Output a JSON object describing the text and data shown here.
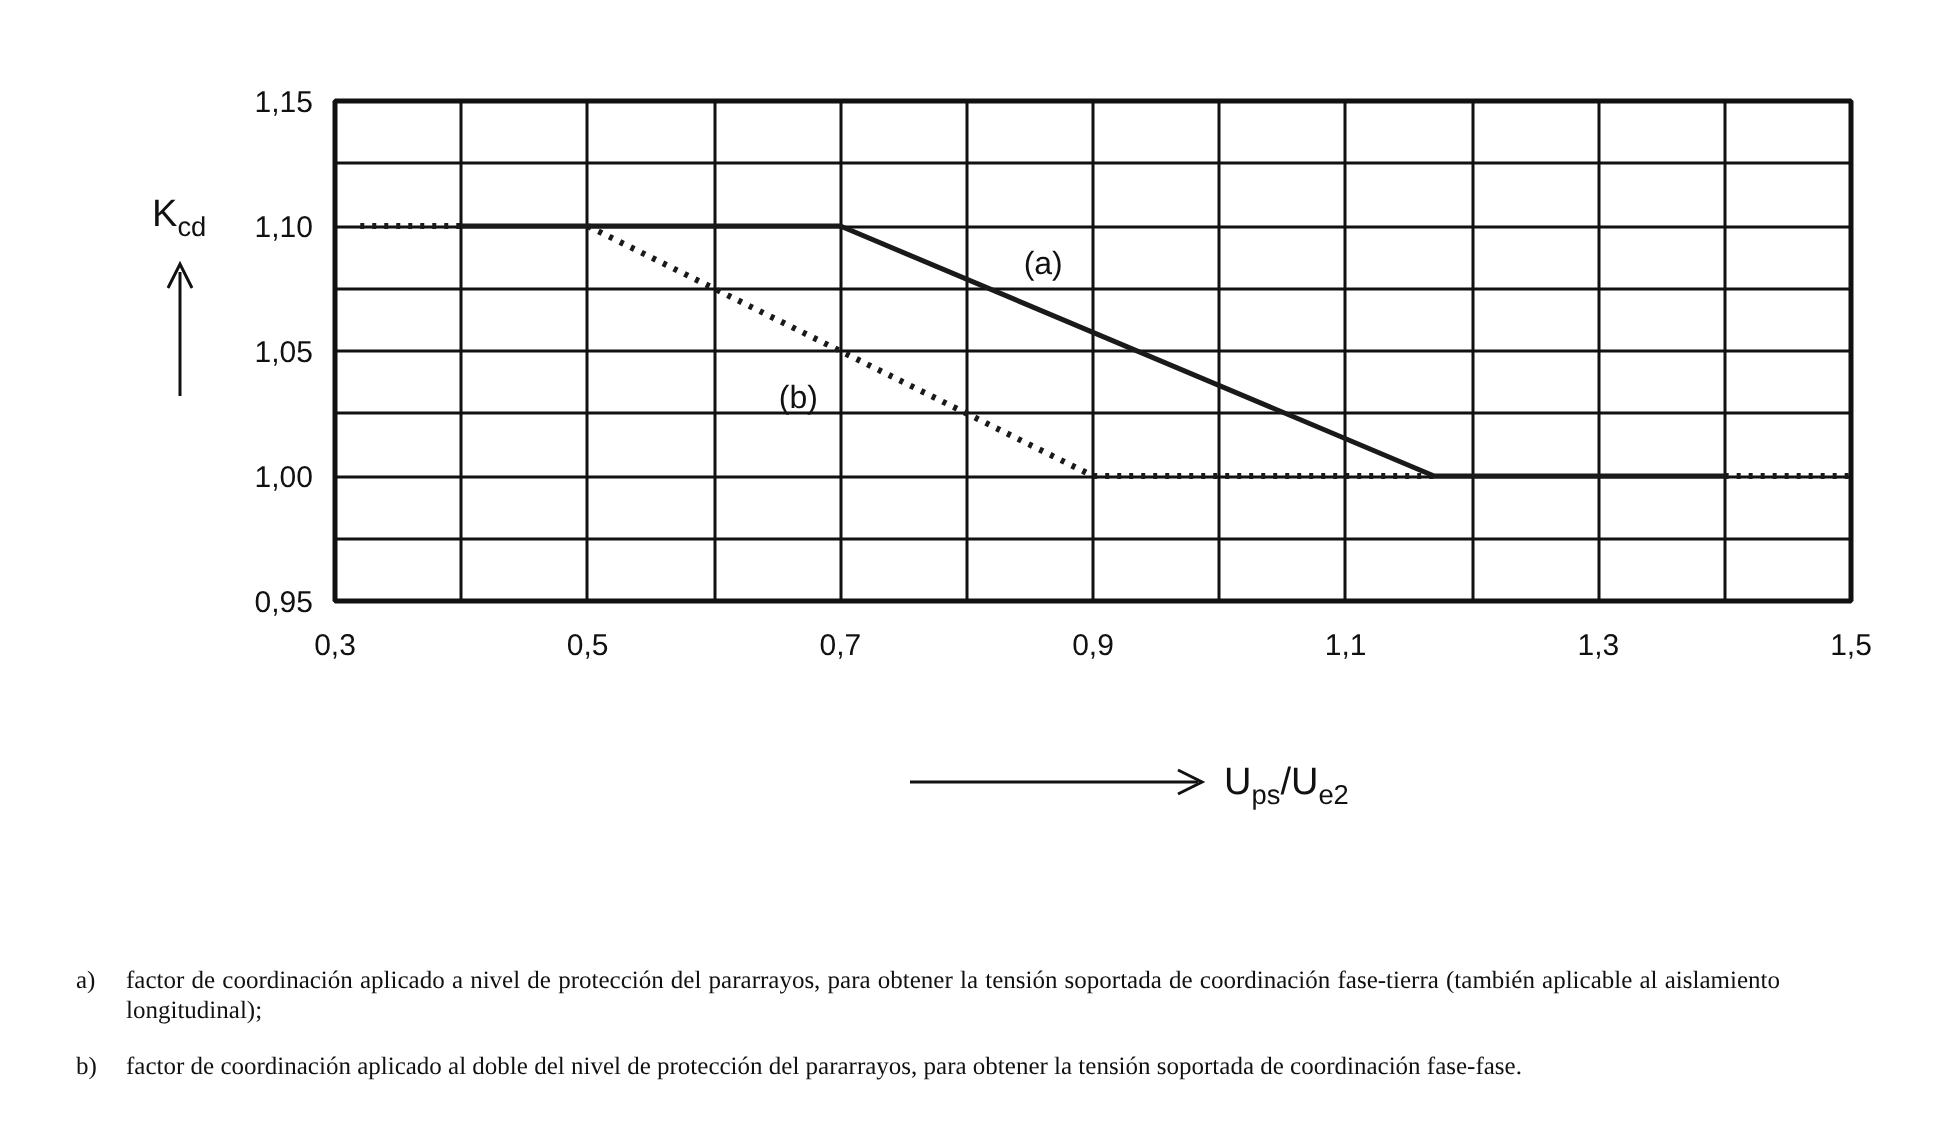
{
  "chart_data": {
    "type": "line",
    "xlabel": "U$_{ps}$/U$_{e2}$",
    "ylabel": "K$_{cd}$",
    "xlim": [
      0.3,
      1.5
    ],
    "ylim": [
      0.95,
      1.15
    ],
    "xticks": [
      {
        "value": 0.3,
        "label": "0,3"
      },
      {
        "value": 0.4,
        "label": null
      },
      {
        "value": 0.5,
        "label": "0,5"
      },
      {
        "value": 0.6,
        "label": null
      },
      {
        "value": 0.7,
        "label": "0,7"
      },
      {
        "value": 0.8,
        "label": null
      },
      {
        "value": 0.9,
        "label": "0,9"
      },
      {
        "value": 1.0,
        "label": null
      },
      {
        "value": 1.1,
        "label": "1,1"
      },
      {
        "value": 1.2,
        "label": null
      },
      {
        "value": 1.3,
        "label": "1,3"
      },
      {
        "value": 1.4,
        "label": null
      },
      {
        "value": 1.5,
        "label": "1,5"
      }
    ],
    "yticks": [
      {
        "value": 0.95,
        "label": "0,95"
      },
      {
        "value": 0.975,
        "label": null
      },
      {
        "value": 1.0,
        "label": "1,00"
      },
      {
        "value": 1.025,
        "label": null
      },
      {
        "value": 1.05,
        "label": "1,05"
      },
      {
        "value": 1.075,
        "label": null
      },
      {
        "value": 1.1,
        "label": "1,10"
      },
      {
        "value": 1.125,
        "label": null
      },
      {
        "value": 1.15,
        "label": "1,15"
      }
    ],
    "grid": true,
    "legend": false,
    "series": [
      {
        "name": "(a)",
        "color": "#1a1a1a",
        "line_style": "solid",
        "x": [
          0.4,
          0.7,
          1.17,
          1.4
        ],
        "values": [
          1.1,
          1.1,
          1.0,
          1.0
        ]
      },
      {
        "color": "#1a1a1a",
        "line_style": "dotted",
        "x": [
          0.32,
          0.4
        ],
        "values": [
          1.1,
          1.1
        ]
      },
      {
        "name": "(b)",
        "color": "#1a1a1a",
        "line_style": "dotted",
        "x": [
          0.5,
          0.9,
          1.17
        ],
        "values": [
          1.1,
          1.0,
          1.0
        ]
      },
      {
        "color": "#1a1a1a",
        "line_style": "dotted",
        "x": [
          1.4,
          1.5
        ],
        "values": [
          1.0,
          1.0
        ]
      }
    ],
    "annotations": [
      "a)\tfactor de coordinación aplicado a nivel de protección del pararrayos, para obtener la tensión soportada de coordinación fase-tierra (también aplicable al aislamiento longitudinal);",
      "b)\tfactor de coordinación aplicado al doble del nivel de protección del pararrayos, para obtener la tensión soportada de coordinación fase-fase."
    ]
  }
}
